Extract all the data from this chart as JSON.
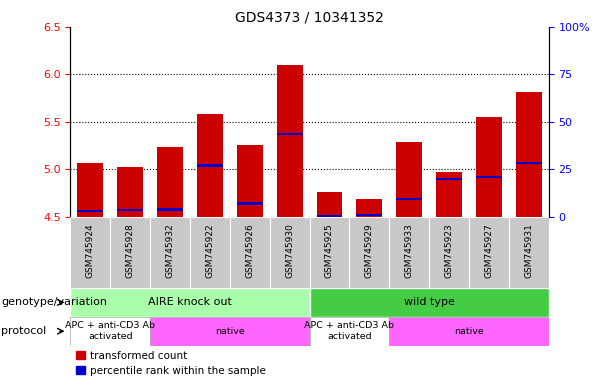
{
  "title": "GDS4373 / 10341352",
  "samples": [
    "GSM745924",
    "GSM745928",
    "GSM745932",
    "GSM745922",
    "GSM745926",
    "GSM745930",
    "GSM745925",
    "GSM745929",
    "GSM745933",
    "GSM745923",
    "GSM745927",
    "GSM745931"
  ],
  "bar_bottoms": [
    4.5,
    4.5,
    4.5,
    4.5,
    4.5,
    4.5,
    4.5,
    4.5,
    4.5,
    4.5,
    4.5,
    4.5
  ],
  "bar_tops": [
    5.07,
    5.03,
    5.24,
    5.58,
    5.26,
    6.1,
    4.76,
    4.69,
    5.29,
    4.97,
    5.55,
    5.82
  ],
  "blue_markers": [
    4.56,
    4.57,
    4.58,
    5.04,
    4.64,
    5.37,
    4.51,
    4.52,
    4.69,
    4.9,
    4.92,
    5.07
  ],
  "ylim_left": [
    4.5,
    6.5
  ],
  "ylim_right": [
    0,
    100
  ],
  "yticks_left": [
    4.5,
    5.0,
    5.5,
    6.0,
    6.5
  ],
  "yticks_right": [
    0,
    25,
    50,
    75,
    100
  ],
  "ytick_labels_right": [
    "0",
    "25",
    "50",
    "75",
    "100%"
  ],
  "bar_color": "#cc0000",
  "blue_color": "#0000cc",
  "bg_xtick": "#c8c8c8",
  "genotype_groups": [
    {
      "label": "AIRE knock out",
      "start": 0,
      "end": 6,
      "color": "#aaffaa"
    },
    {
      "label": "wild type",
      "start": 6,
      "end": 12,
      "color": "#44cc44"
    }
  ],
  "protocol_groups": [
    {
      "label": "APC + anti-CD3 Ab\nactivated",
      "start": 0,
      "end": 2,
      "color": "#ffffff"
    },
    {
      "label": "native",
      "start": 2,
      "end": 6,
      "color": "#ff66ff"
    },
    {
      "label": "APC + anti-CD3 Ab\nactivated",
      "start": 6,
      "end": 8,
      "color": "#ffffff"
    },
    {
      "label": "native",
      "start": 8,
      "end": 12,
      "color": "#ff66ff"
    }
  ],
  "legend_red": "transformed count",
  "legend_blue": "percentile rank within the sample",
  "label_genotype": "genotype/variation",
  "label_protocol": "protocol",
  "title_fontsize": 10,
  "tick_fontsize": 8,
  "label_fontsize": 8
}
